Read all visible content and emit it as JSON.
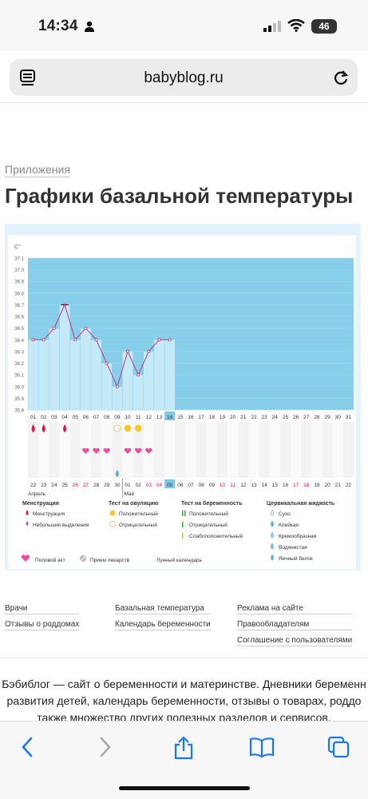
{
  "status": {
    "time": "14:34",
    "battery": "46"
  },
  "browser": {
    "domain": "babyblog.ru"
  },
  "page": {
    "breadcrumb": "Приложения",
    "title": "Графики базальной температуры"
  },
  "chart_data": {
    "type": "line",
    "ylabel": "C°",
    "y_ticks": [
      "37.1",
      "37.0",
      "36.9",
      "36.8",
      "36.7",
      "36.6",
      "36.5",
      "36.4",
      "36.3",
      "36.2",
      "36.1",
      "36.0",
      "35.9",
      "35.8"
    ],
    "ylim": [
      35.8,
      37.1
    ],
    "cycle_days": [
      "01",
      "02",
      "03",
      "04",
      "05",
      "06",
      "07",
      "08",
      "09",
      "10",
      "11",
      "12",
      "13",
      "14",
      "15",
      "16",
      "17",
      "18",
      "19",
      "20",
      "21",
      "22",
      "23",
      "24",
      "25",
      "26",
      "27",
      "28",
      "29",
      "30",
      "31"
    ],
    "current_day": "14",
    "temperatures": [
      36.4,
      36.4,
      36.5,
      36.7,
      36.4,
      36.5,
      36.4,
      36.2,
      36.0,
      36.3,
      36.1,
      36.3,
      36.4,
      36.4
    ],
    "calendar_dates": [
      "22",
      "23",
      "24",
      "25",
      "26",
      "27",
      "28",
      "29",
      "30",
      "01",
      "02",
      "03",
      "04",
      "05",
      "06",
      "07",
      "08",
      "09",
      "10",
      "11",
      "12",
      "13",
      "14",
      "15",
      "16",
      "17",
      "18",
      "19",
      "20",
      "21",
      "22"
    ],
    "weekend_indices": [
      4,
      5,
      11,
      12,
      18,
      19,
      25,
      26
    ],
    "highlight_date_index": 13,
    "months": [
      "Апрель",
      "Май"
    ],
    "menstruation_days": [
      0,
      1,
      3
    ],
    "ovulation_test_days": [
      {
        "day": 8,
        "result": "negative"
      },
      {
        "day": 9,
        "result": "positive"
      },
      {
        "day": 10,
        "result": "positive"
      }
    ],
    "intercourse_days": [
      5,
      6,
      7,
      9,
      10,
      11
    ],
    "cervical_fluid_days": [
      {
        "day": 8,
        "type": "egg-white"
      }
    ],
    "colors": {
      "plot_bg": "#87ceeb",
      "bar": "#c4e9f7",
      "line": "#c0397b",
      "menses": "#e5123b",
      "heart": "#f04da2",
      "ovulation_positive": "#f7c82d",
      "weekend": "#e5123b",
      "highlight": "#7fc6e8"
    }
  },
  "legend": {
    "menstruation": {
      "title": "Менструация",
      "items": [
        "Менструация",
        "Небольшие выделения"
      ]
    },
    "ovulation": {
      "title": "Тест на овуляцию",
      "items": [
        "Положительный",
        "Отрицательный"
      ]
    },
    "pregnancy": {
      "title": "Тест на беременность",
      "items": [
        "Положительный",
        "Отрицательный",
        "Слабоположительный"
      ]
    },
    "cervical": {
      "title": "Цервикальная жидкость",
      "items": [
        "Сухо",
        "Клейкая",
        "Кремообразная",
        "Водянистая",
        "Яичный белок"
      ]
    },
    "bottom": [
      "Половой акт",
      "Прием лекарств",
      "Лунный календарь"
    ]
  },
  "footer": {
    "col1": [
      "Врачи",
      "Отзывы о роддомах"
    ],
    "col2": [
      "Базальная температура",
      "Календарь беременности"
    ],
    "col3": [
      "Реклама на сайте",
      "Правообладателям",
      "Соглашение с пользователями"
    ]
  },
  "about": [
    "Бэбиблог — сайт о беременности и материнстве. Дневники беременн",
    "развития детей, календарь беременности, отзывы о товарах, роддо",
    "также множество других полезных разделов и сервисов."
  ]
}
